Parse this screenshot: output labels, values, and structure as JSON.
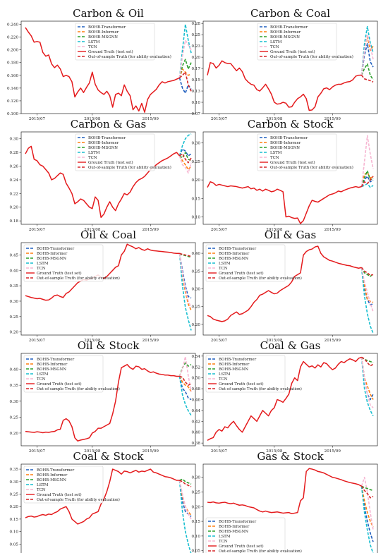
{
  "figure": {
    "series_styles": [
      {
        "name": "BOHB-Transformer",
        "color": "#1f5fbf",
        "dash": "4,2"
      },
      {
        "name": "BOHB-Informer",
        "color": "#ff7f0e",
        "dash": "4,2"
      },
      {
        "name": "BOHB-MSGNN",
        "color": "#2ca02c",
        "dash": "4,2"
      },
      {
        "name": "LSTM",
        "color": "#17becf",
        "dash": "4,2"
      },
      {
        "name": "TCN",
        "color": "#f7b6d2",
        "dash": "4,2"
      },
      {
        "name": "Ground Truth (test set)",
        "color": "#e41a1c",
        "dash": ""
      },
      {
        "name": "Out-of-sample Truth (for ability evaluation)",
        "color": "#d62728",
        "dash": "4,2"
      }
    ],
    "x_tick_labels": [
      "2015/07",
      "2015/08",
      "2015/09"
    ]
  },
  "chart_data": [
    {
      "type": "line",
      "title": "Carbon & Oil",
      "ylim": [
        0.1,
        0.245
      ],
      "yticks": [
        0.1,
        0.12,
        0.14,
        0.16,
        0.18,
        0.2,
        0.22,
        0.24
      ],
      "legend_placement": "top-right",
      "ground_truth": [
        0.235,
        0.228,
        0.222,
        0.212,
        0.213,
        0.212,
        0.196,
        0.19,
        0.192,
        0.178,
        0.172,
        0.176,
        0.17,
        0.158,
        0.16,
        0.158,
        0.15,
        0.126,
        0.134,
        0.14,
        0.133,
        0.141,
        0.148,
        0.165,
        0.146,
        0.137,
        0.133,
        0.13,
        0.135,
        0.128,
        0.11,
        0.13,
        0.132,
        0.128,
        0.145,
        0.135,
        0.128,
        0.106,
        0.112,
        0.104,
        0.116,
        0.102,
        0.122,
        0.13,
        0.134,
        0.138,
        0.145,
        0.15,
        0.148,
        0.15,
        0.151,
        0.152,
        0.154,
        0.156
      ],
      "forecasts": {
        "BOHB-Transformer": [
          0.156,
          0.14,
          0.132,
          0.145,
          0.138
        ],
        "BOHB-Informer": [
          0.156,
          0.17,
          0.165,
          0.16,
          0.162
        ],
        "BOHB-MSGNN": [
          0.156,
          0.175,
          0.185,
          0.17,
          0.18
        ],
        "LSTM": [
          0.156,
          0.2,
          0.24,
          0.215,
          0.195
        ],
        "TCN": [
          0.156,
          0.19,
          0.215,
          0.208,
          0.2
        ],
        "Out-of-sample Truth (for ability evaluation)": [
          0.156,
          0.16,
          0.165,
          0.145,
          0.135
        ]
      }
    },
    {
      "type": "line",
      "title": "Carbon & Coal",
      "ylim": [
        0.075,
        0.28
      ],
      "yticks": [
        0.075,
        0.1,
        0.125,
        0.15,
        0.175,
        0.2,
        0.225,
        0.25,
        0.275
      ],
      "legend_placement": "top-right",
      "ground_truth": [
        0.16,
        0.188,
        0.186,
        0.176,
        0.182,
        0.192,
        0.188,
        0.186,
        0.186,
        0.178,
        0.17,
        0.176,
        0.168,
        0.152,
        0.145,
        0.14,
        0.138,
        0.128,
        0.125,
        0.132,
        0.14,
        0.13,
        0.118,
        0.1,
        0.096,
        0.097,
        0.1,
        0.098,
        0.089,
        0.09,
        0.1,
        0.108,
        0.112,
        0.118,
        0.108,
        0.082,
        0.083,
        0.09,
        0.112,
        0.12,
        0.13,
        0.132,
        0.128,
        0.134,
        0.138,
        0.14,
        0.14,
        0.143,
        0.145,
        0.146,
        0.15,
        0.158,
        0.16,
        0.16
      ],
      "forecasts": {
        "BOHB-Transformer": [
          0.16,
          0.205,
          0.23,
          0.19,
          0.178
        ],
        "BOHB-Informer": [
          0.16,
          0.22,
          0.245,
          0.215,
          0.225
        ],
        "BOHB-MSGNN": [
          0.16,
          0.175,
          0.185,
          0.16,
          0.15
        ],
        "LSTM": [
          0.16,
          0.23,
          0.268,
          0.232,
          0.21
        ],
        "TCN": [
          0.16,
          0.215,
          0.25,
          0.225,
          0.195
        ],
        "Out-of-sample Truth (for ability evaluation)": [
          0.16,
          0.152,
          0.15,
          0.148,
          0.145
        ]
      }
    },
    {
      "type": "line",
      "title": "Carbon & Gas",
      "ylim": [
        0.175,
        0.31
      ],
      "yticks": [
        0.18,
        0.2,
        0.22,
        0.24,
        0.26,
        0.28,
        0.3
      ],
      "legend_placement": "top-right",
      "ground_truth": [
        0.278,
        0.286,
        0.289,
        0.27,
        0.268,
        0.262,
        0.26,
        0.255,
        0.25,
        0.24,
        0.242,
        0.246,
        0.25,
        0.248,
        0.235,
        0.228,
        0.22,
        0.205,
        0.208,
        0.212,
        0.21,
        0.205,
        0.2,
        0.198,
        0.215,
        0.21,
        0.185,
        0.19,
        0.2,
        0.208,
        0.2,
        0.195,
        0.205,
        0.212,
        0.22,
        0.218,
        0.222,
        0.23,
        0.236,
        0.24,
        0.242,
        0.245,
        0.25,
        0.255,
        0.258,
        0.262,
        0.265,
        0.268,
        0.27,
        0.272,
        0.275,
        0.278,
        0.28,
        0.275
      ],
      "forecasts": {
        "BOHB-Transformer": [
          0.275,
          0.285,
          0.282,
          0.275,
          0.278
        ],
        "BOHB-Informer": [
          0.275,
          0.268,
          0.262,
          0.255,
          0.26
        ],
        "BOHB-MSGNN": [
          0.275,
          0.272,
          0.28,
          0.27,
          0.268
        ],
        "LSTM": [
          0.275,
          0.29,
          0.3,
          0.305,
          0.307
        ],
        "TCN": [
          0.275,
          0.262,
          0.258,
          0.25,
          0.265
        ],
        "Out-of-sample Truth (for ability evaluation)": [
          0.275,
          0.278,
          0.27,
          0.265,
          0.272
        ]
      }
    },
    {
      "type": "line",
      "title": "Carbon & Stock",
      "ylim": [
        0.08,
        0.33
      ],
      "yticks": [
        0.1,
        0.15,
        0.2,
        0.25,
        0.3
      ],
      "legend_placement": "top-right",
      "ground_truth": [
        0.18,
        0.195,
        0.192,
        0.185,
        0.188,
        0.186,
        0.184,
        0.182,
        0.184,
        0.183,
        0.182,
        0.18,
        0.178,
        0.18,
        0.182,
        0.176,
        0.178,
        0.172,
        0.175,
        0.17,
        0.175,
        0.172,
        0.168,
        0.17,
        0.175,
        0.172,
        0.168,
        0.1,
        0.102,
        0.098,
        0.096,
        0.097,
        0.082,
        0.09,
        0.11,
        0.13,
        0.145,
        0.142,
        0.14,
        0.145,
        0.15,
        0.155,
        0.16,
        0.162,
        0.165,
        0.17,
        0.168,
        0.172,
        0.175,
        0.178,
        0.18,
        0.182,
        0.18,
        0.182
      ],
      "forecasts": {
        "BOHB-Transformer": [
          0.182,
          0.2,
          0.21,
          0.195,
          0.2
        ],
        "BOHB-Informer": [
          0.182,
          0.215,
          0.22,
          0.205,
          0.21
        ],
        "BOHB-MSGNN": [
          0.182,
          0.205,
          0.225,
          0.2,
          0.205
        ],
        "LSTM": [
          0.182,
          0.185,
          0.19,
          0.18,
          0.185
        ],
        "TCN": [
          0.182,
          0.25,
          0.32,
          0.27,
          0.23
        ],
        "Out-of-sample Truth (for ability evaluation)": [
          0.182,
          0.195,
          0.19,
          0.2,
          0.21
        ]
      }
    },
    {
      "type": "line",
      "title": "Oil & Coal",
      "ylim": [
        0.19,
        0.49
      ],
      "yticks": [
        0.2,
        0.25,
        0.3,
        0.35,
        0.4,
        0.45
      ],
      "legend_placement": "top-left",
      "ground_truth": [
        0.318,
        0.315,
        0.312,
        0.31,
        0.308,
        0.309,
        0.306,
        0.303,
        0.304,
        0.31,
        0.318,
        0.32,
        0.315,
        0.312,
        0.325,
        0.33,
        0.34,
        0.35,
        0.36,
        0.365,
        0.37,
        0.368,
        0.372,
        0.375,
        0.38,
        0.385,
        0.378,
        0.374,
        0.38,
        0.39,
        0.4,
        0.41,
        0.415,
        0.45,
        0.462,
        0.485,
        0.48,
        0.476,
        0.47,
        0.474,
        0.468,
        0.465,
        0.47,
        0.466,
        0.464,
        0.463,
        0.462,
        0.461,
        0.46,
        0.459,
        0.458,
        0.456,
        0.455,
        0.455
      ],
      "forecasts": {
        "BOHB-Transformer": [
          0.455,
          0.4,
          0.35,
          0.315,
          0.31
        ],
        "BOHB-Informer": [
          0.455,
          0.38,
          0.33,
          0.29,
          0.27
        ],
        "BOHB-MSGNN": [
          0.455,
          0.45,
          0.448,
          0.445,
          0.443
        ],
        "LSTM": [
          0.455,
          0.35,
          0.28,
          0.24,
          0.205
        ],
        "TCN": [
          0.455,
          0.39,
          0.34,
          0.3,
          0.28
        ],
        "Out-of-sample Truth (for ability evaluation)": [
          0.455,
          0.452,
          0.45,
          0.448,
          0.445
        ]
      }
    },
    {
      "type": "line",
      "title": "Oil & Gas",
      "ylim": [
        0.17,
        0.43
      ],
      "yticks": [
        0.2,
        0.25,
        0.3,
        0.35,
        0.4
      ],
      "legend_placement": "top-left",
      "ground_truth": [
        0.225,
        0.222,
        0.215,
        0.212,
        0.21,
        0.208,
        0.21,
        0.215,
        0.225,
        0.23,
        0.235,
        0.228,
        0.23,
        0.235,
        0.24,
        0.25,
        0.262,
        0.27,
        0.282,
        0.285,
        0.29,
        0.295,
        0.29,
        0.286,
        0.288,
        0.295,
        0.3,
        0.305,
        0.31,
        0.32,
        0.335,
        0.34,
        0.345,
        0.395,
        0.405,
        0.41,
        0.412,
        0.418,
        0.42,
        0.4,
        0.39,
        0.385,
        0.38,
        0.378,
        0.375,
        0.372,
        0.37,
        0.368,
        0.366,
        0.365,
        0.362,
        0.36,
        0.358,
        0.36
      ],
      "forecasts": {
        "BOHB-Transformer": [
          0.36,
          0.3,
          0.27,
          0.255,
          0.258
        ],
        "BOHB-Informer": [
          0.36,
          0.31,
          0.27,
          0.265,
          0.262
        ],
        "BOHB-MSGNN": [
          0.36,
          0.345,
          0.34,
          0.335,
          0.342
        ],
        "LSTM": [
          0.36,
          0.28,
          0.23,
          0.195,
          0.175
        ],
        "TCN": [
          0.36,
          0.32,
          0.29,
          0.26,
          0.235
        ],
        "Out-of-sample Truth (for ability evaluation)": [
          0.36,
          0.35,
          0.345,
          0.338,
          0.34
        ]
      }
    },
    {
      "type": "line",
      "title": "Oil & Stock",
      "ylim": [
        0.16,
        0.45
      ],
      "yticks": [
        0.2,
        0.25,
        0.3,
        0.35,
        0.4
      ],
      "legend_placement": "top-left",
      "ground_truth": [
        0.205,
        0.204,
        0.203,
        0.202,
        0.204,
        0.203,
        0.201,
        0.203,
        0.202,
        0.204,
        0.205,
        0.21,
        0.212,
        0.24,
        0.245,
        0.238,
        0.22,
        0.185,
        0.175,
        0.178,
        0.18,
        0.182,
        0.185,
        0.2,
        0.205,
        0.215,
        0.215,
        0.22,
        0.225,
        0.23,
        0.26,
        0.3,
        0.36,
        0.405,
        0.41,
        0.415,
        0.405,
        0.4,
        0.41,
        0.408,
        0.4,
        0.402,
        0.395,
        0.39,
        0.392,
        0.388,
        0.385,
        0.384,
        0.382,
        0.382,
        0.38,
        0.38,
        0.378,
        0.378
      ],
      "forecasts": {
        "BOHB-Transformer": [
          0.378,
          0.34,
          0.33,
          0.31,
          0.305
        ],
        "BOHB-Informer": [
          0.378,
          0.36,
          0.35,
          0.345,
          0.33
        ],
        "BOHB-MSGNN": [
          0.378,
          0.405,
          0.42,
          0.41,
          0.415
        ],
        "LSTM": [
          0.378,
          0.32,
          0.29,
          0.27,
          0.255
        ],
        "TCN": [
          0.378,
          0.4,
          0.44,
          0.38,
          0.33
        ],
        "Out-of-sample Truth (for ability evaluation)": [
          0.378,
          0.375,
          0.36,
          0.35,
          0.355
        ]
      }
    },
    {
      "type": "line",
      "title": "Coal & Gas",
      "ylim": [
        0.375,
        0.545
      ],
      "yticks": [
        0.38,
        0.4,
        0.42,
        0.44,
        0.46,
        0.48,
        0.5,
        0.52,
        0.54
      ],
      "legend_placement": "top-left",
      "ground_truth": [
        0.385,
        0.388,
        0.39,
        0.4,
        0.405,
        0.402,
        0.41,
        0.408,
        0.415,
        0.42,
        0.412,
        0.405,
        0.4,
        0.41,
        0.42,
        0.43,
        0.425,
        0.42,
        0.43,
        0.44,
        0.435,
        0.43,
        0.44,
        0.445,
        0.46,
        0.458,
        0.455,
        0.462,
        0.47,
        0.49,
        0.5,
        0.495,
        0.52,
        0.53,
        0.525,
        0.52,
        0.522,
        0.518,
        0.524,
        0.52,
        0.528,
        0.526,
        0.52,
        0.515,
        0.518,
        0.525,
        0.53,
        0.528,
        0.532,
        0.535,
        0.533,
        0.53,
        0.536,
        0.538
      ],
      "forecasts": {
        "BOHB-Transformer": [
          0.538,
          0.5,
          0.47,
          0.46,
          0.47
        ],
        "BOHB-Informer": [
          0.538,
          0.5,
          0.485,
          0.47,
          0.46
        ],
        "BOHB-MSGNN": [
          0.538,
          0.534,
          0.532,
          0.53,
          0.528
        ],
        "LSTM": [
          0.538,
          0.48,
          0.455,
          0.44,
          0.43
        ],
        "TCN": [
          0.538,
          0.5,
          0.47,
          0.45,
          0.445
        ],
        "Out-of-sample Truth (for ability evaluation)": [
          0.538,
          0.535,
          0.528,
          0.522,
          0.525
        ]
      }
    },
    {
      "type": "line",
      "title": "Coal & Stock",
      "ylim": [
        0.0,
        0.37
      ],
      "yticks": [
        0.0,
        0.05,
        0.1,
        0.15,
        0.2,
        0.25,
        0.3,
        0.35
      ],
      "legend_placement": "top-left",
      "ground_truth": [
        0.155,
        0.16,
        0.162,
        0.158,
        0.16,
        0.165,
        0.168,
        0.165,
        0.17,
        0.168,
        0.175,
        0.18,
        0.19,
        0.195,
        0.2,
        0.18,
        0.15,
        0.14,
        0.13,
        0.135,
        0.14,
        0.15,
        0.155,
        0.17,
        0.175,
        0.18,
        0.21,
        0.23,
        0.26,
        0.3,
        0.35,
        0.345,
        0.34,
        0.33,
        0.342,
        0.34,
        0.335,
        0.34,
        0.345,
        0.338,
        0.342,
        0.34,
        0.345,
        0.35,
        0.338,
        0.335,
        0.33,
        0.325,
        0.32,
        0.318,
        0.315,
        0.31,
        0.305,
        0.305
      ],
      "forecasts": {
        "BOHB-Transformer": [
          0.305,
          0.22,
          0.18,
          0.17,
          0.16
        ],
        "BOHB-Informer": [
          0.305,
          0.24,
          0.2,
          0.18,
          0.165
        ],
        "BOHB-MSGNN": [
          0.305,
          0.31,
          0.3,
          0.295,
          0.29
        ],
        "LSTM": [
          0.305,
          0.18,
          0.1,
          0.05,
          0.01
        ],
        "TCN": [
          0.305,
          0.25,
          0.2,
          0.17,
          0.15
        ],
        "Out-of-sample Truth (for ability evaluation)": [
          0.305,
          0.3,
          0.29,
          0.285,
          0.28
        ]
      }
    },
    {
      "type": "line",
      "title": "Gas & Stock",
      "ylim": [
        0.03,
        0.345
      ],
      "yticks": [
        0.05,
        0.1,
        0.15,
        0.2,
        0.25,
        0.3
      ],
      "legend_placement": "bottom-left",
      "ground_truth": [
        0.215,
        0.214,
        0.216,
        0.213,
        0.212,
        0.214,
        0.215,
        0.212,
        0.21,
        0.212,
        0.208,
        0.205,
        0.206,
        0.204,
        0.2,
        0.198,
        0.196,
        0.19,
        0.185,
        0.182,
        0.185,
        0.182,
        0.18,
        0.181,
        0.182,
        0.18,
        0.178,
        0.179,
        0.18,
        0.176,
        0.178,
        0.18,
        0.22,
        0.23,
        0.32,
        0.33,
        0.328,
        0.325,
        0.32,
        0.318,
        0.315,
        0.31,
        0.305,
        0.3,
        0.298,
        0.295,
        0.292,
        0.288,
        0.285,
        0.282,
        0.28,
        0.278,
        0.275,
        0.27
      ],
      "forecasts": {
        "BOHB-Transformer": [
          0.27,
          0.2,
          0.15,
          0.11,
          0.08
        ],
        "BOHB-Informer": [
          0.27,
          0.22,
          0.18,
          0.15,
          0.13
        ],
        "BOHB-MSGNN": [
          0.27,
          0.265,
          0.262,
          0.258,
          0.255
        ],
        "LSTM": [
          0.27,
          0.18,
          0.12,
          0.07,
          0.04
        ],
        "TCN": [
          0.27,
          0.3,
          0.25,
          0.18,
          0.12
        ],
        "Out-of-sample Truth (for ability evaluation)": [
          0.27,
          0.255,
          0.245,
          0.23,
          0.235
        ]
      }
    }
  ]
}
